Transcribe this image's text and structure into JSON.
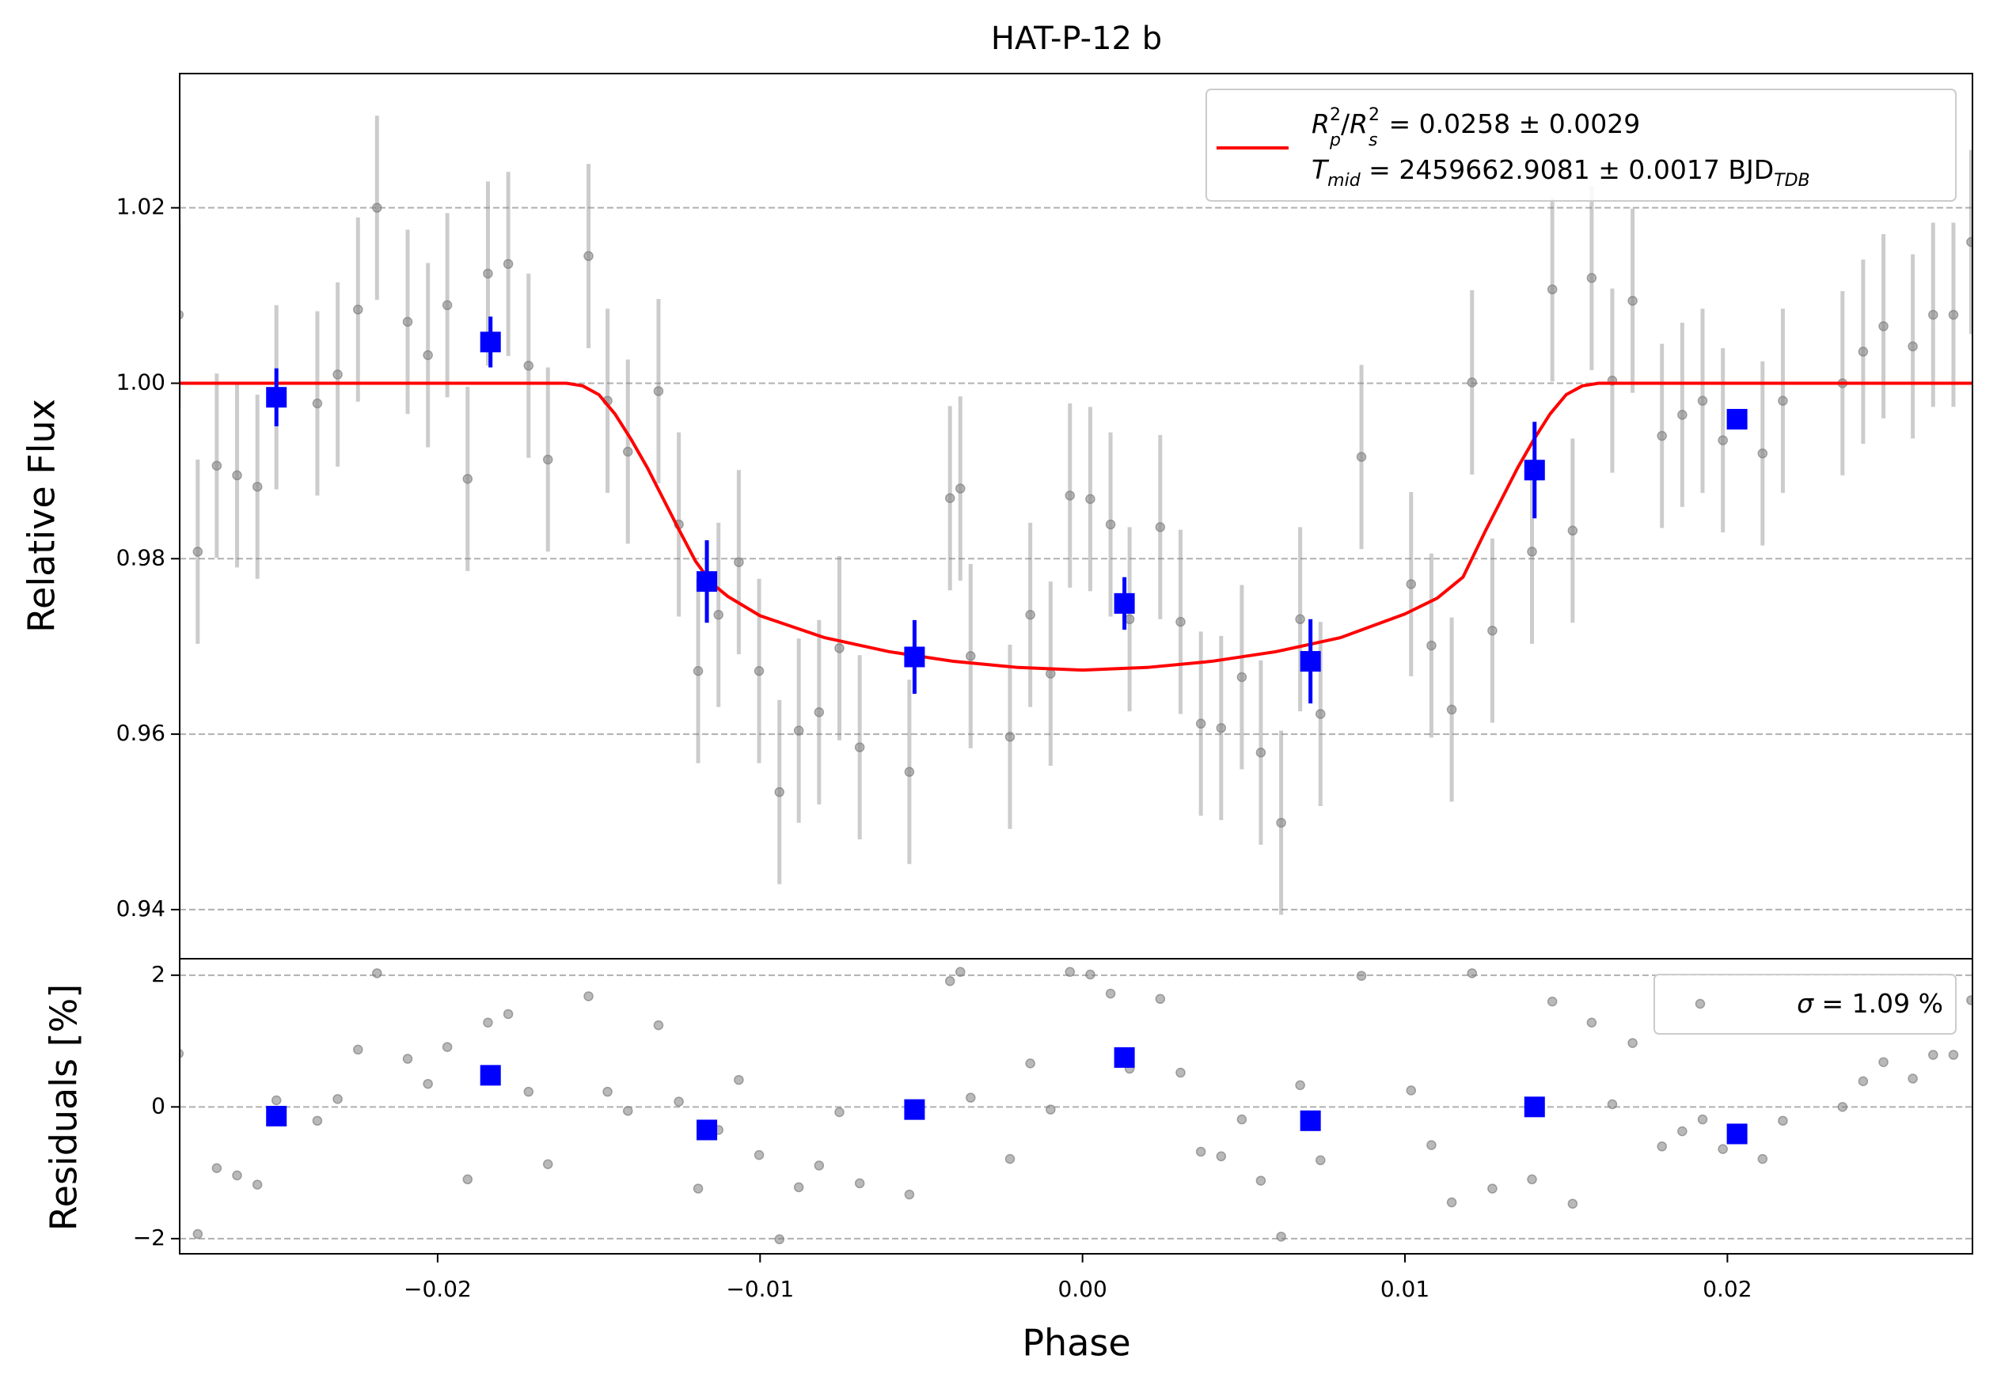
{
  "chart_data": [
    {
      "type": "scatter",
      "title": "HAT-P-12 b",
      "y_label": "Relative Flux",
      "xlim": [
        -0.028,
        0.0276
      ],
      "ylim": [
        0.9344,
        1.0353
      ],
      "yticks": [
        0.94,
        0.96,
        0.98,
        {
          "value": 1.0,
          "label": "1.00"
        },
        1.02
      ],
      "grid": true,
      "legend": "upper right",
      "series": [
        {
          "kind": "errorbar",
          "marker": "circle",
          "color": "#808080",
          "yerr": 0.0105,
          "x": [
            -0.02803,
            -0.02744,
            -0.02685,
            -0.02622,
            -0.02559,
            -0.025,
            -0.02373,
            -0.0231,
            -0.02247,
            -0.02188,
            -0.02093,
            -0.0203,
            -0.0197,
            -0.01907,
            -0.01844,
            -0.01781,
            -0.01718,
            -0.01658,
            -0.01532,
            -0.01473,
            -0.0141,
            -0.01315,
            -0.01252,
            -0.01192,
            -0.01129,
            -0.01066,
            -0.01003,
            -0.0094,
            -0.0088,
            -0.00817,
            -0.00754,
            -0.00691,
            -0.00537,
            -0.00411,
            -0.00379,
            -0.00347,
            -0.00225,
            -0.00162,
            -0.00099,
            -0.00039,
            0.00024,
            0.00087,
            0.00146,
            0.00241,
            0.00304,
            0.00367,
            0.0043,
            0.00494,
            0.00553,
            0.00616,
            0.00675,
            0.00738,
            0.00865,
            0.01019,
            0.01082,
            0.01145,
            0.01208,
            0.01271,
            0.01394,
            0.01457,
            0.0152,
            0.01579,
            0.01643,
            0.01706,
            0.01797,
            0.0186,
            0.01923,
            0.01986,
            0.02109,
            0.02172,
            0.02357,
            0.02421,
            0.02484,
            0.02575,
            0.02638,
            0.02701,
            0.02756
          ],
          "values": [
            1.0078,
            0.9808,
            0.9906,
            0.9895,
            0.9882,
            0.9984,
            0.9977,
            1.001,
            1.0084,
            1.02,
            1.007,
            1.0032,
            1.0089,
            0.9891,
            1.0125,
            1.0136,
            1.002,
            0.9913,
            1.0145,
            0.998,
            0.9922,
            0.9991,
            0.9839,
            0.9672,
            0.9736,
            0.9796,
            0.9672,
            0.9534,
            0.9604,
            0.9625,
            0.9698,
            0.9585,
            0.9557,
            0.9869,
            0.988,
            0.9689,
            0.9597,
            0.9736,
            0.9669,
            0.9872,
            0.9868,
            0.9839,
            0.9731,
            0.9836,
            0.9728,
            0.9612,
            0.9607,
            0.9665,
            0.9579,
            0.9499,
            0.9731,
            0.9623,
            0.9916,
            0.9771,
            0.9701,
            0.9628,
            1.0001,
            0.9718,
            0.9808,
            1.0107,
            0.9832,
            1.012,
            1.0003,
            1.0094,
            0.994,
            0.9964,
            0.998,
            0.9935,
            0.992,
            0.998,
            1.0,
            1.0036,
            1.0065,
            1.0042,
            1.0078,
            1.0078,
            1.0161
          ]
        },
        {
          "kind": "line",
          "color": "#ff0000",
          "name": [
            [
              "R",
              "p",
              "2",
              "/",
              "R",
              "s",
              "2",
              " = 0.0258 ± 0.0029"
            ],
            [
              "T",
              "mid",
              " = 2459662.9081 ± 0.0017 BJD",
              "TDB"
            ]
          ],
          "x": [
            -0.028,
            -0.016,
            -0.0155,
            -0.015,
            -0.0145,
            -0.014,
            -0.0135,
            -0.013,
            -0.0125,
            -0.012,
            -0.0115,
            -0.011,
            -0.01,
            -0.008,
            -0.006,
            -0.004,
            -0.002,
            0.0,
            0.002,
            0.004,
            0.006,
            0.008,
            0.01,
            0.011,
            0.0118,
            0.0125,
            0.013,
            0.0135,
            0.014,
            0.0145,
            0.015,
            0.0155,
            0.016,
            0.0276
          ],
          "values": [
            1.0,
            1.0,
            0.9997,
            0.9987,
            0.9965,
            0.9936,
            0.9904,
            0.9868,
            0.9832,
            0.9797,
            0.9772,
            0.9757,
            0.9735,
            0.971,
            0.9694,
            0.9683,
            0.9676,
            0.9673,
            0.9676,
            0.9683,
            0.9694,
            0.971,
            0.9737,
            0.9755,
            0.9779,
            0.9832,
            0.9868,
            0.9904,
            0.9936,
            0.9965,
            0.9987,
            0.9997,
            1.0,
            1.0
          ]
        },
        {
          "kind": "errorbar",
          "marker": "square",
          "color": "#0000ff",
          "x": [
            -0.025,
            -0.01836,
            -0.01165,
            -0.00521,
            0.0013,
            0.00707,
            0.01402,
            0.0203
          ],
          "values": [
            0.9984,
            1.0047,
            0.9774,
            0.9688,
            0.9749,
            0.9683,
            0.9901,
            0.9959
          ],
          "yerr": [
            0.0033,
            0.0029,
            0.0047,
            0.0042,
            0.003,
            0.0048,
            0.0055,
            0
          ]
        }
      ]
    },
    {
      "type": "scatter",
      "x_label": "Phase",
      "y_label": "Residuals [%]",
      "xlim": [
        -0.028,
        0.0276
      ],
      "ylim": [
        -2.23,
        2.25
      ],
      "xticks": [
        {
          "value": -0.02,
          "label": "−0.02"
        },
        {
          "value": -0.01,
          "label": "−0.01"
        },
        {
          "value": 0,
          "label": "0.00"
        },
        0.01,
        0.02
      ],
      "yticks": [
        {
          "value": -2,
          "label": "−2"
        },
        0,
        2
      ],
      "grid": true,
      "legend": "upper right",
      "series": [
        {
          "kind": "errorbar",
          "marker": "circle",
          "color": "#808080",
          "name": [
            "σ",
            " = 1.09 %"
          ],
          "x": [
            -0.02803,
            -0.02744,
            -0.02685,
            -0.02622,
            -0.02559,
            -0.025,
            -0.02373,
            -0.0231,
            -0.02247,
            -0.02188,
            -0.02093,
            -0.0203,
            -0.0197,
            -0.01907,
            -0.01844,
            -0.01781,
            -0.01718,
            -0.01658,
            -0.01532,
            -0.01473,
            -0.0141,
            -0.01315,
            -0.01252,
            -0.01192,
            -0.01129,
            -0.01066,
            -0.01003,
            -0.0094,
            -0.0088,
            -0.00817,
            -0.00754,
            -0.00691,
            -0.00537,
            -0.00411,
            -0.00379,
            -0.00347,
            -0.00225,
            -0.00162,
            -0.00099,
            -0.00039,
            0.00024,
            0.00087,
            0.00146,
            0.00241,
            0.00304,
            0.00367,
            0.0043,
            0.00494,
            0.00553,
            0.00616,
            0.00675,
            0.00738,
            0.00865,
            0.01019,
            0.01082,
            0.01145,
            0.01208,
            0.01271,
            0.01394,
            0.01457,
            0.0152,
            0.01579,
            0.01643,
            0.01706,
            0.01797,
            0.0186,
            0.01923,
            0.01986,
            0.02109,
            0.02172,
            0.02357,
            0.02421,
            0.02484,
            0.02575,
            0.02638,
            0.02701,
            0.02756
          ],
          "values": [
            0.81,
            -1.93,
            -0.93,
            -1.04,
            -1.18,
            0.1,
            -0.21,
            0.12,
            0.87,
            2.03,
            0.73,
            0.35,
            0.91,
            -1.1,
            1.28,
            1.41,
            0.23,
            -0.87,
            1.68,
            0.23,
            -0.06,
            1.24,
            0.08,
            -1.24,
            -0.35,
            0.41,
            -0.73,
            -2.01,
            -1.22,
            -0.89,
            -0.08,
            -1.16,
            -1.33,
            1.91,
            2.05,
            0.14,
            -0.79,
            0.66,
            -0.04,
            2.05,
            2.01,
            1.72,
            0.58,
            1.64,
            0.52,
            -0.68,
            -0.75,
            -0.19,
            -1.12,
            -1.97,
            0.33,
            -0.81,
            1.99,
            0.25,
            -0.58,
            -1.45,
            2.03,
            -1.24,
            -1.1,
            1.6,
            -1.47,
            1.28,
            0.04,
            0.97,
            -0.6,
            -0.37,
            -0.19,
            -0.64,
            -0.79,
            -0.21,
            0.0,
            0.39,
            0.68,
            0.43,
            0.79,
            0.79,
            1.62
          ]
        },
        {
          "kind": "errorbar",
          "marker": "square",
          "color": "#0000ff",
          "x": [
            -0.025,
            -0.01836,
            -0.01165,
            -0.00521,
            0.0013,
            0.00707,
            0.01402,
            0.0203
          ],
          "values": [
            -0.14,
            0.48,
            -0.35,
            -0.04,
            0.75,
            -0.21,
            0.0,
            -0.41
          ]
        }
      ]
    }
  ]
}
